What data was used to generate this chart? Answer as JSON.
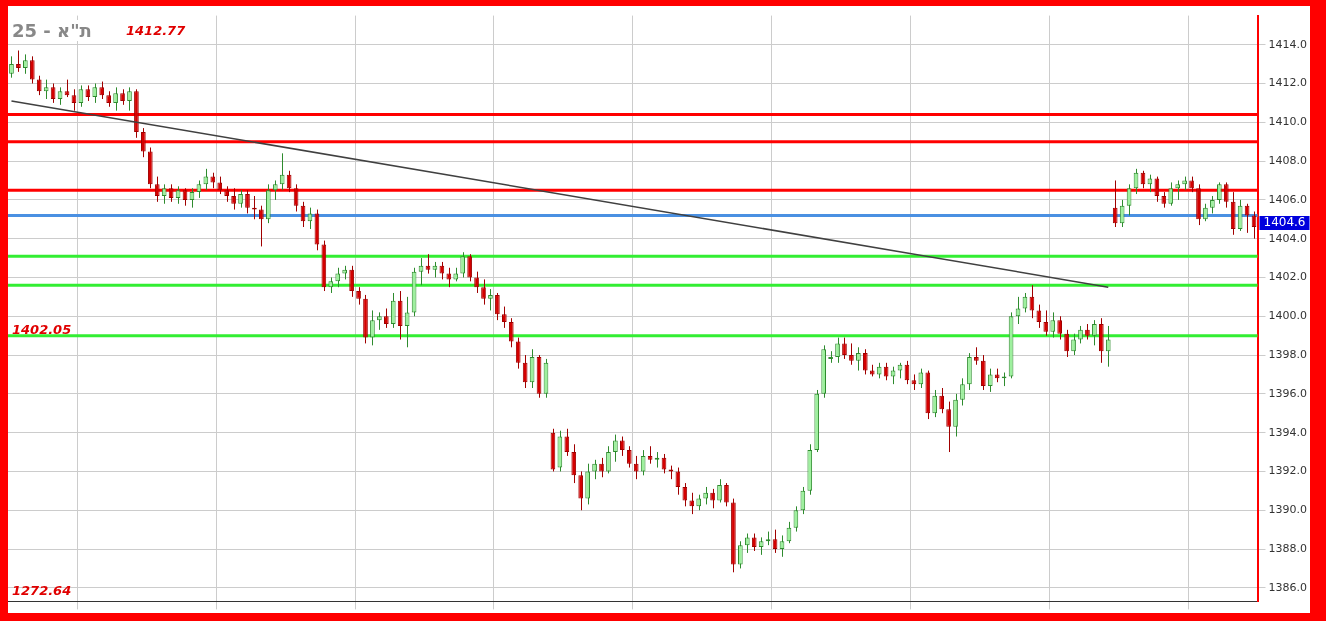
{
  "chart_data": {
    "type": "candlestick",
    "title": "ת\"א - 25",
    "categories": [
      null,
      null,
      null,
      null,
      null,
      null,
      null,
      null,
      null,
      null,
      null,
      null,
      null,
      null,
      null,
      null,
      null,
      null,
      null,
      null,
      null,
      null,
      null,
      null,
      null,
      null,
      null,
      null,
      null,
      null,
      null,
      null,
      null,
      null,
      null,
      null,
      null,
      null,
      null,
      null,
      null,
      null,
      null,
      null,
      null,
      null,
      null,
      null,
      null,
      null,
      null,
      null,
      null,
      null,
      null,
      null,
      null,
      null,
      null,
      null,
      null,
      null,
      null,
      null,
      null,
      null,
      null,
      null,
      null,
      null,
      null,
      null,
      null,
      null,
      null,
      null,
      null,
      null,
      null,
      null,
      null,
      null,
      null,
      null,
      null,
      null,
      null,
      null,
      null,
      null,
      null,
      null,
      null,
      null,
      null,
      null,
      null,
      null,
      null,
      null,
      null,
      null,
      null,
      null,
      null,
      null,
      null,
      null,
      null,
      null,
      null,
      null,
      null,
      null,
      null,
      null,
      null,
      null,
      null,
      null,
      null,
      null,
      null,
      null,
      null,
      null,
      null,
      null,
      null,
      null,
      null,
      null,
      null,
      null,
      null,
      null,
      null,
      null,
      null,
      null,
      null,
      null,
      null,
      null,
      null,
      null,
      null,
      null,
      null,
      null,
      null,
      null,
      null,
      null,
      null,
      null,
      null,
      null,
      null,
      null,
      null,
      null,
      null,
      null,
      null,
      null,
      null,
      null,
      null,
      null,
      null,
      null,
      null,
      null,
      null,
      null,
      null,
      null,
      null,
      null
    ],
    "ohlc": [
      [
        1412.5,
        1413.4,
        1412.3,
        1413.0
      ],
      [
        1413.0,
        1413.7,
        1412.6,
        1412.8
      ],
      [
        1412.8,
        1413.5,
        1412.5,
        1413.2
      ],
      [
        1413.2,
        1413.4,
        1412.0,
        1412.2
      ],
      [
        1412.2,
        1412.4,
        1411.4,
        1411.6
      ],
      [
        1411.6,
        1412.2,
        1411.2,
        1411.8
      ],
      [
        1411.8,
        1412.0,
        1411.0,
        1411.2
      ],
      [
        1411.2,
        1411.8,
        1410.9,
        1411.6
      ],
      [
        1411.6,
        1412.2,
        1411.3,
        1411.4
      ],
      [
        1411.4,
        1411.7,
        1410.6,
        1411.0
      ],
      [
        1411.0,
        1411.9,
        1410.8,
        1411.7
      ],
      [
        1411.7,
        1411.9,
        1411.1,
        1411.3
      ],
      [
        1411.3,
        1412.0,
        1411.0,
        1411.8
      ],
      [
        1411.8,
        1412.1,
        1411.2,
        1411.4
      ],
      [
        1411.4,
        1411.6,
        1410.8,
        1411.0
      ],
      [
        1411.0,
        1411.8,
        1410.6,
        1411.5
      ],
      [
        1411.5,
        1411.7,
        1410.9,
        1411.1
      ],
      [
        1411.1,
        1411.8,
        1410.6,
        1411.6
      ],
      [
        1411.6,
        1411.7,
        1409.2,
        1409.5
      ],
      [
        1409.5,
        1409.7,
        1408.2,
        1408.5
      ],
      [
        1408.5,
        1408.7,
        1406.6,
        1406.8
      ],
      [
        1406.8,
        1407.2,
        1405.9,
        1406.2
      ],
      [
        1406.2,
        1406.8,
        1405.8,
        1406.6
      ],
      [
        1406.6,
        1406.8,
        1405.9,
        1406.1
      ],
      [
        1406.1,
        1406.7,
        1405.8,
        1406.5
      ],
      [
        1406.5,
        1406.6,
        1405.7,
        1406.0
      ],
      [
        1406.0,
        1406.6,
        1405.6,
        1406.4
      ],
      [
        1406.4,
        1407.0,
        1406.1,
        1406.8
      ],
      [
        1406.8,
        1407.6,
        1406.5,
        1407.2
      ],
      [
        1407.2,
        1407.4,
        1406.6,
        1406.9
      ],
      [
        1406.9,
        1407.2,
        1406.3,
        1406.5
      ],
      [
        1406.5,
        1406.7,
        1405.9,
        1406.2
      ],
      [
        1406.2,
        1406.6,
        1405.5,
        1405.8
      ],
      [
        1405.8,
        1406.5,
        1405.6,
        1406.3
      ],
      [
        1406.3,
        1406.5,
        1405.3,
        1405.6
      ],
      [
        1405.6,
        1406.2,
        1405.0,
        1405.5
      ],
      [
        1405.5,
        1405.7,
        1403.6,
        1405.0
      ],
      [
        1405.0,
        1406.8,
        1404.8,
        1406.5
      ],
      [
        1406.5,
        1407.0,
        1406.0,
        1406.8
      ],
      [
        1406.8,
        1408.4,
        1406.5,
        1407.3
      ],
      [
        1407.3,
        1407.5,
        1406.4,
        1406.6
      ],
      [
        1406.6,
        1406.8,
        1405.4,
        1405.7
      ],
      [
        1405.7,
        1405.9,
        1404.6,
        1404.9
      ],
      [
        1404.9,
        1405.6,
        1404.5,
        1405.3
      ],
      [
        1405.3,
        1405.5,
        1403.4,
        1403.7
      ],
      [
        1403.7,
        1403.9,
        1401.3,
        1401.5
      ],
      [
        1401.5,
        1402.0,
        1401.2,
        1401.8
      ],
      [
        1401.8,
        1402.5,
        1401.5,
        1402.2
      ],
      [
        1402.2,
        1402.6,
        1401.9,
        1402.4
      ],
      [
        1402.4,
        1402.6,
        1401.0,
        1401.3
      ],
      [
        1401.3,
        1401.5,
        1400.6,
        1400.9
      ],
      [
        1400.9,
        1401.1,
        1398.6,
        1398.9
      ],
      [
        1398.9,
        1400.3,
        1398.5,
        1399.8
      ],
      [
        1399.8,
        1400.2,
        1399.3,
        1400.0
      ],
      [
        1400.0,
        1400.4,
        1399.4,
        1399.6
      ],
      [
        1399.6,
        1401.2,
        1399.4,
        1400.8
      ],
      [
        1400.8,
        1401.3,
        1398.8,
        1399.5
      ],
      [
        1399.5,
        1401.0,
        1398.4,
        1400.2
      ],
      [
        1400.2,
        1402.5,
        1400.0,
        1402.3
      ],
      [
        1402.3,
        1403.0,
        1401.6,
        1402.6
      ],
      [
        1402.6,
        1403.2,
        1402.2,
        1402.4
      ],
      [
        1402.4,
        1402.8,
        1402.0,
        1402.6
      ],
      [
        1402.6,
        1402.8,
        1401.9,
        1402.2
      ],
      [
        1402.2,
        1402.5,
        1401.5,
        1401.9
      ],
      [
        1401.9,
        1402.5,
        1401.8,
        1402.2
      ],
      [
        1402.2,
        1403.3,
        1402.0,
        1403.1
      ],
      [
        1403.1,
        1403.2,
        1401.8,
        1402.0
      ],
      [
        1402.0,
        1402.3,
        1401.2,
        1401.5
      ],
      [
        1401.5,
        1401.9,
        1400.6,
        1400.9
      ],
      [
        1400.9,
        1401.4,
        1400.3,
        1401.1
      ],
      [
        1401.1,
        1401.2,
        1399.8,
        1400.1
      ],
      [
        1400.1,
        1400.5,
        1399.4,
        1399.7
      ],
      [
        1399.7,
        1399.9,
        1398.4,
        1398.7
      ],
      [
        1398.7,
        1398.9,
        1397.3,
        1397.6
      ],
      [
        1397.6,
        1398.0,
        1396.3,
        1396.6
      ],
      [
        1396.6,
        1398.3,
        1396.3,
        1397.9
      ],
      [
        1397.9,
        1398.0,
        1395.8,
        1396.0
      ],
      [
        1396.0,
        1397.8,
        1395.8,
        1397.6
      ],
      [
        1394.0,
        1394.2,
        1392.0,
        1392.1
      ],
      [
        1392.2,
        1394.1,
        1392.0,
        1393.8
      ],
      [
        1393.8,
        1394.2,
        1392.8,
        1393.0
      ],
      [
        1393.0,
        1393.4,
        1391.4,
        1391.8
      ],
      [
        1391.8,
        1392.0,
        1390.0,
        1390.6
      ],
      [
        1390.6,
        1392.4,
        1390.3,
        1392.0
      ],
      [
        1392.0,
        1392.6,
        1391.6,
        1392.4
      ],
      [
        1392.4,
        1392.7,
        1391.7,
        1392.0
      ],
      [
        1392.0,
        1393.3,
        1391.9,
        1393.0
      ],
      [
        1393.0,
        1393.9,
        1392.5,
        1393.6
      ],
      [
        1393.6,
        1393.8,
        1392.8,
        1393.1
      ],
      [
        1393.1,
        1393.3,
        1392.2,
        1392.4
      ],
      [
        1392.4,
        1392.8,
        1391.6,
        1392.0
      ],
      [
        1392.0,
        1393.1,
        1391.8,
        1392.8
      ],
      [
        1392.8,
        1393.3,
        1392.4,
        1392.6
      ],
      [
        1392.6,
        1393.0,
        1392.2,
        1392.7
      ],
      [
        1392.7,
        1392.9,
        1391.9,
        1392.1
      ],
      [
        1392.1,
        1392.3,
        1391.6,
        1392.0
      ],
      [
        1392.0,
        1392.2,
        1390.8,
        1391.2
      ],
      [
        1391.2,
        1391.4,
        1390.2,
        1390.5
      ],
      [
        1390.5,
        1390.9,
        1389.8,
        1390.2
      ],
      [
        1390.2,
        1390.8,
        1390.0,
        1390.6
      ],
      [
        1390.6,
        1391.2,
        1390.3,
        1390.9
      ],
      [
        1390.9,
        1391.1,
        1390.1,
        1390.5
      ],
      [
        1390.5,
        1391.6,
        1390.4,
        1391.3
      ],
      [
        1391.3,
        1391.4,
        1390.2,
        1390.4
      ],
      [
        1390.4,
        1390.6,
        1386.8,
        1387.2
      ],
      [
        1387.2,
        1388.4,
        1387.0,
        1388.2
      ],
      [
        1388.2,
        1388.8,
        1387.8,
        1388.6
      ],
      [
        1388.6,
        1388.8,
        1387.9,
        1388.1
      ],
      [
        1388.1,
        1388.6,
        1387.7,
        1388.4
      ],
      [
        1388.4,
        1388.9,
        1388.2,
        1388.5
      ],
      [
        1388.5,
        1389.0,
        1387.8,
        1388.0
      ],
      [
        1388.0,
        1388.7,
        1387.6,
        1388.4
      ],
      [
        1388.4,
        1389.4,
        1388.3,
        1389.1
      ],
      [
        1389.1,
        1390.2,
        1388.9,
        1390.0
      ],
      [
        1390.0,
        1391.2,
        1389.8,
        1391.0
      ],
      [
        1391.0,
        1393.4,
        1390.8,
        1393.1
      ],
      [
        1393.1,
        1396.2,
        1393.0,
        1396.0
      ],
      [
        1396.0,
        1398.5,
        1395.8,
        1398.3
      ],
      [
        1397.8,
        1398.2,
        1397.6,
        1397.9
      ],
      [
        1397.9,
        1398.9,
        1397.6,
        1398.6
      ],
      [
        1398.6,
        1398.9,
        1397.8,
        1398.0
      ],
      [
        1398.0,
        1398.6,
        1397.5,
        1397.7
      ],
      [
        1397.7,
        1398.4,
        1397.2,
        1398.1
      ],
      [
        1398.1,
        1398.3,
        1397.0,
        1397.2
      ],
      [
        1397.2,
        1397.5,
        1396.9,
        1397.0
      ],
      [
        1397.0,
        1397.6,
        1396.8,
        1397.4
      ],
      [
        1397.4,
        1397.6,
        1396.7,
        1396.9
      ],
      [
        1396.9,
        1397.4,
        1396.5,
        1397.2
      ],
      [
        1397.2,
        1397.6,
        1396.8,
        1397.5
      ],
      [
        1397.5,
        1397.7,
        1396.5,
        1396.7
      ],
      [
        1396.7,
        1397.0,
        1396.2,
        1396.5
      ],
      [
        1396.5,
        1397.3,
        1396.3,
        1397.1
      ],
      [
        1397.1,
        1397.2,
        1394.7,
        1395.0
      ],
      [
        1395.0,
        1396.2,
        1394.8,
        1395.9
      ],
      [
        1395.9,
        1396.3,
        1395.0,
        1395.2
      ],
      [
        1395.2,
        1395.6,
        1393.0,
        1394.3
      ],
      [
        1394.3,
        1396.0,
        1393.8,
        1395.7
      ],
      [
        1395.7,
        1396.8,
        1395.4,
        1396.5
      ],
      [
        1396.5,
        1398.1,
        1396.2,
        1397.9
      ],
      [
        1397.9,
        1398.4,
        1397.5,
        1397.7
      ],
      [
        1397.7,
        1398.0,
        1396.2,
        1396.4
      ],
      [
        1396.4,
        1397.3,
        1396.1,
        1397.0
      ],
      [
        1397.0,
        1397.3,
        1396.6,
        1396.8
      ],
      [
        1396.8,
        1397.1,
        1396.4,
        1396.9
      ],
      [
        1396.9,
        1400.2,
        1396.8,
        1400.0
      ],
      [
        1400.0,
        1401.0,
        1399.6,
        1400.4
      ],
      [
        1400.4,
        1401.2,
        1400.2,
        1401.0
      ],
      [
        1401.0,
        1401.6,
        1399.9,
        1400.3
      ],
      [
        1400.3,
        1400.6,
        1399.4,
        1399.7
      ],
      [
        1399.7,
        1400.3,
        1399.0,
        1399.2
      ],
      [
        1399.2,
        1400.2,
        1398.9,
        1399.8
      ],
      [
        1399.8,
        1400.0,
        1398.8,
        1399.1
      ],
      [
        1399.1,
        1399.3,
        1397.9,
        1398.2
      ],
      [
        1398.2,
        1399.1,
        1398.0,
        1398.8
      ],
      [
        1398.8,
        1399.5,
        1398.6,
        1399.3
      ],
      [
        1399.3,
        1399.6,
        1398.8,
        1399.0
      ],
      [
        1399.0,
        1399.8,
        1398.5,
        1399.6
      ],
      [
        1399.6,
        1399.9,
        1397.6,
        1398.2
      ],
      [
        1398.2,
        1399.5,
        1397.4,
        1398.8
      ],
      [
        1405.6,
        1407.0,
        1404.6,
        1404.8
      ],
      [
        1404.8,
        1406.0,
        1404.6,
        1405.7
      ],
      [
        1405.7,
        1406.8,
        1405.2,
        1406.6
      ],
      [
        1406.6,
        1407.6,
        1406.3,
        1407.4
      ],
      [
        1407.4,
        1407.5,
        1406.6,
        1406.8
      ],
      [
        1406.8,
        1407.3,
        1406.4,
        1407.1
      ],
      [
        1407.1,
        1407.2,
        1405.9,
        1406.2
      ],
      [
        1406.2,
        1406.4,
        1405.6,
        1405.8
      ],
      [
        1405.8,
        1406.9,
        1405.7,
        1406.6
      ],
      [
        1406.6,
        1407.0,
        1406.0,
        1406.8
      ],
      [
        1406.8,
        1407.2,
        1406.5,
        1407.0
      ],
      [
        1407.0,
        1407.2,
        1406.4,
        1406.6
      ],
      [
        1406.6,
        1406.8,
        1404.7,
        1405.0
      ],
      [
        1405.0,
        1405.8,
        1404.9,
        1405.6
      ],
      [
        1405.6,
        1406.2,
        1405.3,
        1406.0
      ],
      [
        1406.0,
        1406.9,
        1405.8,
        1406.8
      ],
      [
        1406.8,
        1406.9,
        1405.6,
        1405.9
      ],
      [
        1405.9,
        1406.4,
        1404.2,
        1404.5
      ],
      [
        1404.5,
        1406.0,
        1404.4,
        1405.7
      ],
      [
        1405.7,
        1405.8,
        1404.3,
        1405.2
      ],
      [
        1405.2,
        1405.4,
        1404.0,
        1404.6
      ]
    ],
    "series": [
      {
        "type": "line",
        "color": "#404040",
        "values": [
          1411.1,
          null,
          null,
          null,
          null,
          null,
          null,
          null,
          null,
          null,
          null,
          null,
          null,
          null,
          null,
          null,
          null,
          null,
          null,
          null,
          null,
          null,
          null,
          null,
          null,
          null,
          null,
          null,
          null,
          null,
          null,
          null,
          null,
          null,
          null,
          null,
          null,
          null,
          null,
          null,
          null,
          null,
          null,
          null,
          null,
          null,
          null,
          null,
          null,
          null,
          null,
          null,
          null,
          null,
          null,
          null,
          null,
          null,
          null,
          null,
          null,
          null,
          null,
          null,
          null,
          null,
          null,
          null,
          null,
          null,
          null,
          null,
          null,
          null,
          null,
          null,
          null,
          null,
          null,
          null,
          null,
          null,
          null,
          null,
          null,
          null,
          null,
          null,
          null,
          null,
          null,
          null,
          null,
          null,
          null,
          null,
          null,
          null,
          null,
          null,
          null,
          null,
          null,
          null,
          null,
          null,
          null,
          null,
          null,
          null,
          null,
          null,
          null,
          null,
          null,
          null,
          null,
          null,
          null,
          null,
          null,
          null,
          null,
          null,
          null,
          null,
          null,
          null,
          null,
          null,
          null,
          null,
          null,
          null,
          null,
          null,
          null,
          null,
          null,
          null,
          null,
          null,
          null,
          null,
          null,
          null,
          null,
          null,
          null,
          null,
          null,
          null,
          null,
          null,
          null,
          null,
          null,
          null,
          1401.5,
          null,
          null,
          null,
          null,
          null,
          null,
          null,
          null,
          null,
          null,
          null,
          null,
          null,
          null,
          null,
          null,
          null,
          null,
          null,
          null,
          null
        ]
      }
    ],
    "ylim": [
      1385.3,
      1415.5
    ],
    "yticks": [
      {
        "value": 1386,
        "label": "1386.0"
      },
      {
        "value": 1388,
        "label": "1388.0"
      },
      {
        "value": 1390,
        "label": "1390.0"
      },
      {
        "value": 1392,
        "label": "1392.0"
      },
      {
        "value": 1394,
        "label": "1394.0"
      },
      {
        "value": 1396,
        "label": "1396.0"
      },
      {
        "value": 1398,
        "label": "1398.0"
      },
      {
        "value": 1400,
        "label": "1400.0"
      },
      {
        "value": 1402,
        "label": "1402.0"
      },
      {
        "value": 1404,
        "label": "1404.0"
      },
      {
        "value": 1406,
        "label": "1406.0"
      },
      {
        "value": 1408,
        "label": "1408.0"
      },
      {
        "value": 1410,
        "label": "1410.0"
      },
      {
        "value": 1412,
        "label": "1412.0"
      },
      {
        "value": 1414,
        "label": "1414.0"
      }
    ],
    "ref_lines": [
      {
        "axis": "y",
        "value": 1410.4,
        "color": "#ff0000"
      },
      {
        "axis": "y",
        "value": 1409.0,
        "color": "#ff0000"
      },
      {
        "axis": "y",
        "value": 1406.5,
        "color": "#ff0000"
      },
      {
        "axis": "y",
        "value": 1405.2,
        "color": "#4a90e2"
      },
      {
        "axis": "y",
        "value": 1403.1,
        "color": "#33ee33"
      },
      {
        "axis": "y",
        "value": 1401.6,
        "color": "#33ee33"
      },
      {
        "axis": "y",
        "value": 1399.0,
        "color": "#33ee33"
      }
    ],
    "annotations": [
      "1412.77",
      "1402.05",
      "1272.64",
      "1404.6"
    ],
    "grid": true,
    "legend": false,
    "tick_labels": "y"
  }
}
